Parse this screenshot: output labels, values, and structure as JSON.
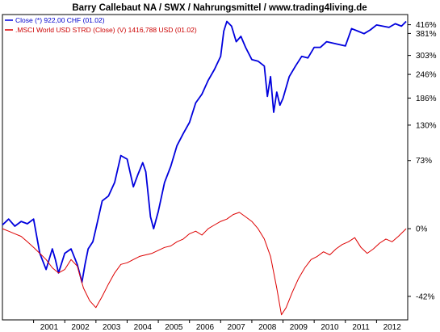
{
  "chart_data": {
    "type": "line",
    "title": "Barry Callebaut NA / SWX / Nahrungsmittel / www.trading4living.de",
    "y_scale": "log",
    "x_ticks": [
      "2001",
      "2002",
      "2003",
      "2004",
      "2005",
      "2006",
      "2007",
      "2008",
      "2009",
      "2010",
      "2011",
      "2012"
    ],
    "xlim": [
      2000.0,
      2013.0
    ],
    "y_ticks": [
      "416%",
      "381%",
      "303%",
      "246%",
      "186%",
      "130%",
      "73%",
      "0%",
      "-42%"
    ],
    "y_tick_values": [
      416,
      381,
      303,
      246,
      186,
      130,
      73,
      0,
      -42
    ],
    "ylim": [
      -52,
      460
    ],
    "grid": false,
    "legend_position": "top-left",
    "series": [
      {
        "name": "Close (*) 922,00 CHF (01.02)",
        "color": "#0000dd",
        "x": [
          2000.0,
          2000.2,
          2000.4,
          2000.6,
          2000.8,
          2001.0,
          2001.2,
          2001.4,
          2001.6,
          2001.7,
          2001.8,
          2002.0,
          2002.2,
          2002.4,
          2002.55,
          2002.65,
          2002.75,
          2002.9,
          2003.0,
          2003.2,
          2003.4,
          2003.6,
          2003.8,
          2004.0,
          2004.2,
          2004.35,
          2004.5,
          2004.6,
          2004.75,
          2004.85,
          2005.0,
          2005.2,
          2005.4,
          2005.6,
          2005.8,
          2006.0,
          2006.2,
          2006.4,
          2006.6,
          2006.8,
          2007.0,
          2007.1,
          2007.2,
          2007.35,
          2007.5,
          2007.65,
          2007.8,
          2008.0,
          2008.2,
          2008.4,
          2008.5,
          2008.6,
          2008.7,
          2008.8,
          2008.9,
          2009.0,
          2009.2,
          2009.4,
          2009.6,
          2009.8,
          2010.0,
          2010.2,
          2010.4,
          2010.6,
          2010.8,
          2011.0,
          2011.2,
          2011.4,
          2011.6,
          2011.8,
          2012.0,
          2012.2,
          2012.4,
          2012.6,
          2012.8,
          2012.95
        ],
        "values": [
          3,
          8,
          2,
          6,
          4,
          8,
          -18,
          -28,
          -15,
          -22,
          -30,
          -18,
          -15,
          -25,
          -35,
          -25,
          -15,
          -10,
          0,
          25,
          30,
          45,
          80,
          75,
          40,
          55,
          70,
          58,
          10,
          0,
          15,
          45,
          65,
          95,
          115,
          135,
          175,
          195,
          230,
          260,
          300,
          390,
          430,
          410,
          350,
          370,
          330,
          290,
          285,
          270,
          190,
          240,
          155,
          200,
          170,
          185,
          240,
          270,
          300,
          295,
          330,
          330,
          350,
          345,
          340,
          335,
          400,
          390,
          380,
          395,
          415,
          410,
          405,
          420,
          410,
          430
        ]
      },
      {
        "name": ".MSCI World USD STRD (Close) (V) 1416,788 USD (01.02)",
        "color": "#dd0000",
        "x": [
          2000.0,
          2000.2,
          2000.4,
          2000.6,
          2000.8,
          2001.0,
          2001.2,
          2001.4,
          2001.6,
          2001.8,
          2002.0,
          2002.2,
          2002.4,
          2002.6,
          2002.8,
          2003.0,
          2003.2,
          2003.4,
          2003.6,
          2003.8,
          2004.0,
          2004.2,
          2004.4,
          2004.6,
          2004.8,
          2005.0,
          2005.2,
          2005.4,
          2005.6,
          2005.8,
          2006.0,
          2006.2,
          2006.4,
          2006.6,
          2006.8,
          2007.0,
          2007.2,
          2007.4,
          2007.6,
          2007.8,
          2008.0,
          2008.2,
          2008.4,
          2008.6,
          2008.8,
          2008.95,
          2009.1,
          2009.3,
          2009.5,
          2009.7,
          2009.9,
          2010.1,
          2010.3,
          2010.5,
          2010.7,
          2010.9,
          2011.1,
          2011.3,
          2011.5,
          2011.7,
          2011.9,
          2012.1,
          2012.3,
          2012.5,
          2012.7,
          2012.95
        ],
        "values": [
          0,
          -2,
          -4,
          -6,
          -10,
          -14,
          -18,
          -22,
          -27,
          -30,
          -28,
          -22,
          -26,
          -38,
          -44,
          -47,
          -42,
          -36,
          -30,
          -25,
          -24,
          -22,
          -20,
          -19,
          -18,
          -16,
          -14,
          -13,
          -10,
          -8,
          -4,
          -2,
          -5,
          0,
          3,
          6,
          8,
          12,
          14,
          10,
          6,
          0,
          -8,
          -20,
          -38,
          -50,
          -47,
          -40,
          -33,
          -27,
          -22,
          -20,
          -17,
          -19,
          -15,
          -12,
          -10,
          -7,
          -14,
          -18,
          -15,
          -11,
          -8,
          -10,
          -6,
          0
        ]
      }
    ]
  }
}
